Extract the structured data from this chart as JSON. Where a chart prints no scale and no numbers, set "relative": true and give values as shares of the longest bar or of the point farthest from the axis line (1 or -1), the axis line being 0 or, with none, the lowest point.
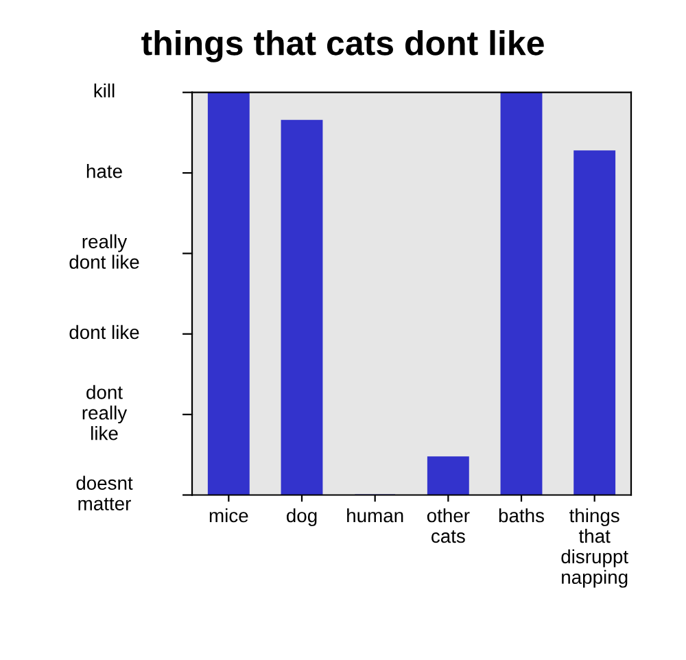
{
  "chart_data": {
    "type": "bar",
    "title": "things that cats dont like",
    "categories": [
      "mice",
      "dog",
      "human",
      "other\ncats",
      "baths",
      "things\nthat\ndisruppt\nnapping"
    ],
    "values": [
      1,
      0.93,
      0,
      0.094,
      1,
      0.854
    ],
    "color": "#3333cc",
    "relative": true,
    "annotations": [
      "kill",
      "hate",
      "really\ndont like",
      "dont like",
      "dont\nreally\nlike",
      "doesnt\nmatter"
    ]
  }
}
